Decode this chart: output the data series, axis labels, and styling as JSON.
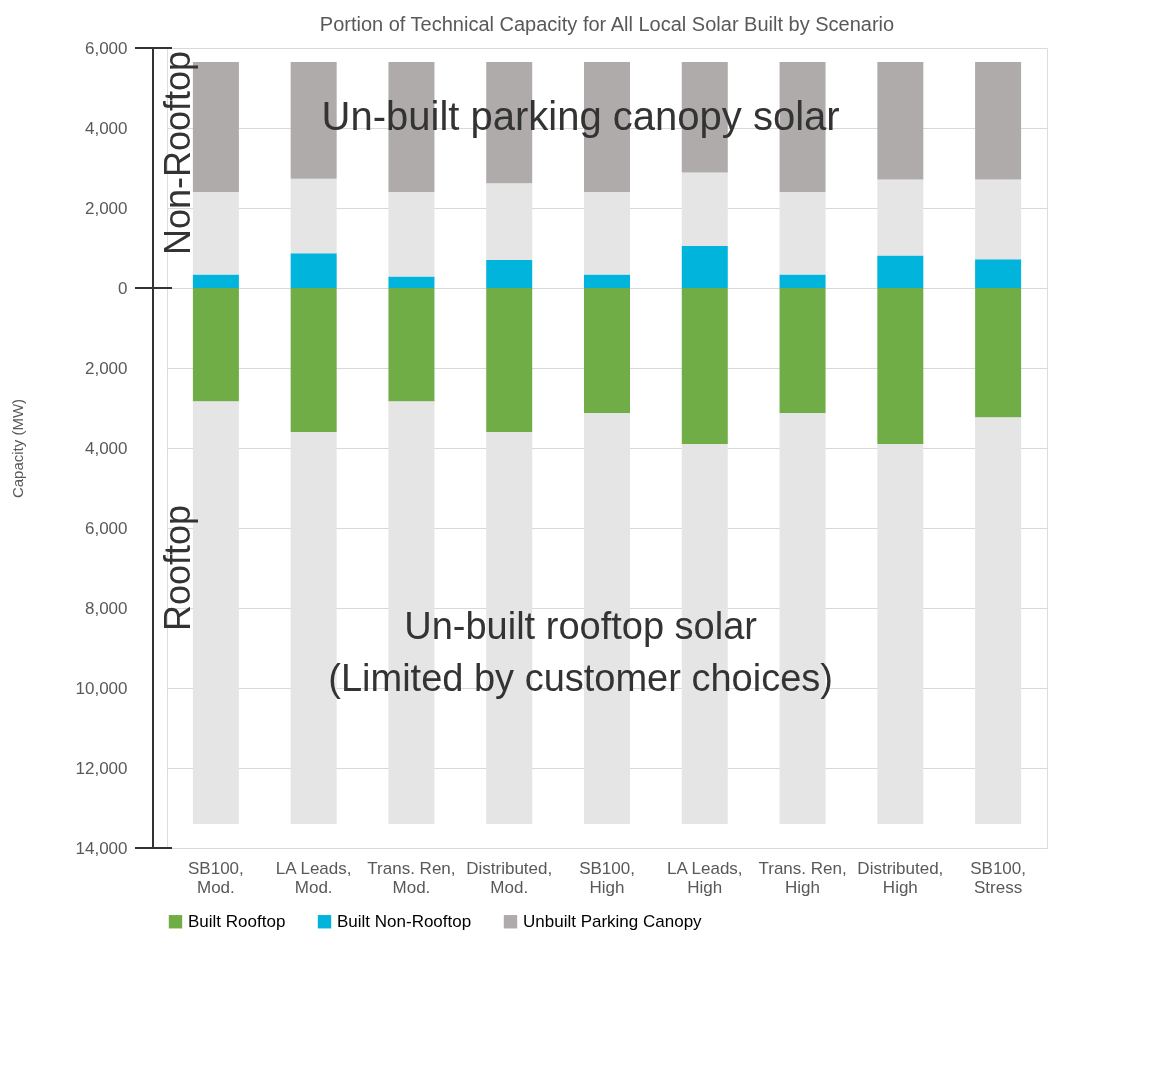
{
  "chart_data": {
    "type": "bar",
    "stacked": true,
    "title": "Portion of Technical Capacity for All Local Solar Built by Scenario",
    "ylabel": "Capacity (MW)",
    "categories": [
      "SB100, Mod.",
      "LA Leads, Mod.",
      "Trans. Ren, Mod.",
      "Distributed, Mod.",
      "SB100, High",
      "LA Leads, High",
      "Trans. Ren, High",
      "Distributed, High",
      "SB100, Stress"
    ],
    "series": [
      {
        "name": "Built Rooftop",
        "color": "#70ad47",
        "values": [
          -2840,
          -3600,
          -2840,
          -3600,
          -3130,
          -3900,
          -3130,
          -3900,
          -3240
        ]
      },
      {
        "name": "Built Non-Rooftop",
        "color": "#00b4dc",
        "values": [
          340,
          870,
          290,
          700,
          340,
          1050,
          340,
          810,
          720
        ]
      },
      {
        "color": "#e6e5e5",
        "values": [
          2060,
          1860,
          2110,
          1920,
          2060,
          1840,
          2060,
          1900,
          1990
        ]
      },
      {
        "name": "Unbuilt Parking Canopy",
        "color": "#aeabaa",
        "values": [
          3250,
          2920,
          3250,
          3030,
          3250,
          2760,
          3250,
          2940,
          2940
        ]
      },
      {
        "color": "#e6e5e5",
        "values": [
          -10560,
          -9800,
          -10560,
          -9800,
          -10270,
          -9500,
          -10270,
          -9500,
          -10160
        ]
      }
    ],
    "ylim": [
      -14000,
      6000
    ],
    "yticks": [
      {
        "value": -14000,
        "label": "14,000"
      },
      {
        "value": -12000,
        "label": "12,000"
      },
      {
        "value": -10000,
        "label": "10,000"
      },
      {
        "value": -8000,
        "label": "8,000"
      },
      {
        "value": -6000,
        "label": "6,000"
      },
      {
        "value": -4000,
        "label": "4,000"
      },
      {
        "value": -2000,
        "label": "2,000"
      },
      0,
      {
        "value": 2000,
        "label": "2,000"
      },
      {
        "value": 4000,
        "label": "4,000"
      },
      {
        "value": 6000,
        "label": "6,000"
      }
    ],
    "grid": "y",
    "legend": "bottom",
    "annotations": [
      "Un-built parking canopy solar",
      "Un-built rooftop solar\n(Limited by customer choices)",
      "Non-Rooftop",
      "Rooftop"
    ]
  }
}
